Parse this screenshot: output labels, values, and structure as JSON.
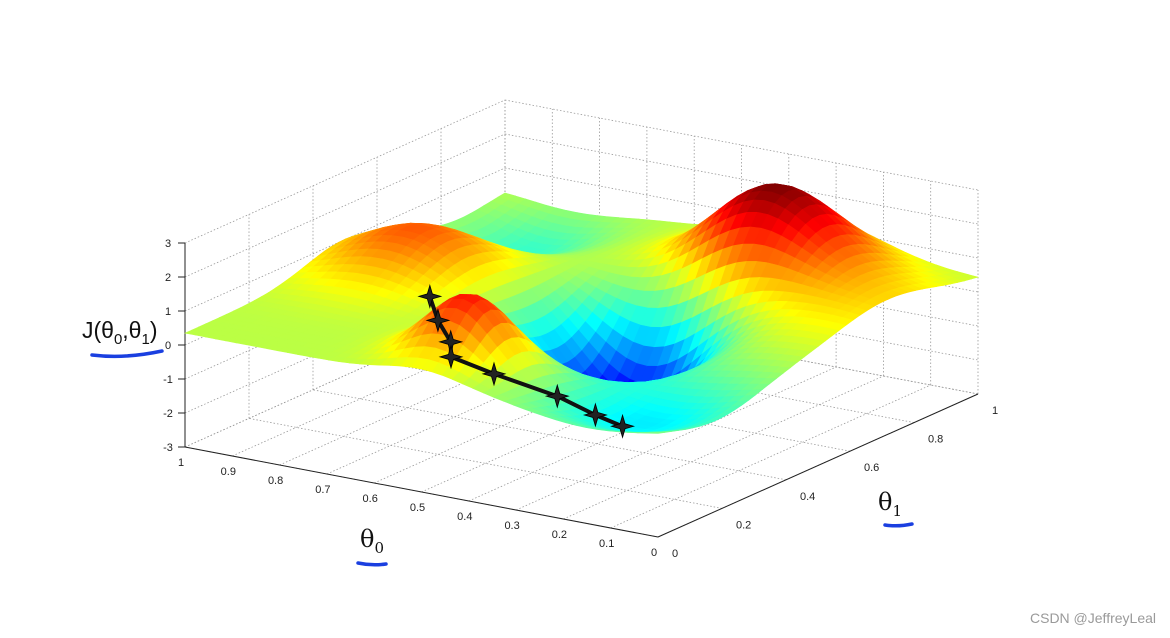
{
  "chart_data": {
    "type": "surface3d",
    "zlim": [
      -3,
      3
    ],
    "zticks": [
      "3",
      "2",
      "1",
      "0",
      "-1",
      "-2",
      "-3"
    ],
    "theta0_ticks": [
      "1",
      "0.9",
      "0.8",
      "0.7",
      "0.6",
      "0.5",
      "0.4",
      "0.3",
      "0.2",
      "0.1",
      "0"
    ],
    "theta1_ticks": [
      "0",
      "0.2",
      "0.4",
      "0.6",
      "0.8",
      "1"
    ],
    "grid": true,
    "zlabel": {
      "main": "J(θ",
      "sub0": "0",
      "mid": ",θ",
      "sub1": "1",
      "end": ")"
    },
    "xlabel": {
      "main": "θ",
      "sub": "0"
    },
    "ylabel": {
      "main": "θ",
      "sub": "1"
    },
    "descent_path": {
      "theta0": [
        0.55,
        0.56,
        0.56,
        0.6,
        0.57,
        0.47,
        0.43,
        0.42
      ],
      "theta1": [
        0.1,
        0.14,
        0.18,
        0.24,
        0.33,
        0.38,
        0.44,
        0.51
      ],
      "J": [
        2.2,
        1.3,
        0.5,
        -0.3,
        -1.1,
        -1.7,
        -2.4,
        -3.0
      ]
    },
    "colormap": "jet"
  },
  "watermark": "CSDN @JeffreyLeal",
  "annotation_color": "#1a3fe0"
}
